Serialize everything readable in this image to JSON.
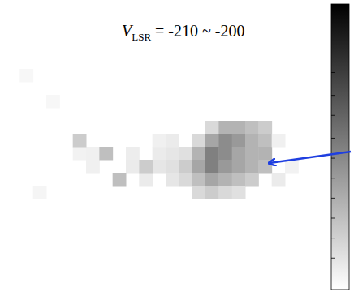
{
  "chart_data": {
    "type": "heatmap",
    "annotation": {
      "symbol": "V",
      "subscript": "LSR",
      "text": "= -210 ~ -200"
    },
    "xlim": [
      0,
      24
    ],
    "ylim": [
      0,
      22
    ],
    "xticks": [
      0,
      1,
      2,
      3,
      4,
      5,
      6,
      7,
      8,
      9,
      10,
      11,
      12,
      13,
      14,
      15,
      16,
      17,
      18,
      19,
      20,
      21,
      22,
      23,
      24
    ],
    "yticks": [
      0,
      2,
      4,
      6,
      8,
      10,
      12,
      14,
      16,
      18,
      20,
      22
    ],
    "tick_labels": false,
    "color": "gray",
    "cells": [
      [
        15,
        9,
        0.15
      ],
      [
        16,
        9,
        0.3
      ],
      [
        17,
        9,
        0.3
      ],
      [
        18,
        9,
        0.25
      ],
      [
        19,
        9,
        0.2
      ],
      [
        14,
        10,
        0.15
      ],
      [
        15,
        10,
        0.35
      ],
      [
        16,
        10,
        0.45
      ],
      [
        17,
        10,
        0.4
      ],
      [
        18,
        10,
        0.3
      ],
      [
        19,
        10,
        0.25
      ],
      [
        13,
        11,
        0.12
      ],
      [
        14,
        11,
        0.3
      ],
      [
        15,
        11,
        0.5
      ],
      [
        16,
        11,
        0.45
      ],
      [
        17,
        11,
        0.35
      ],
      [
        18,
        11,
        0.3
      ],
      [
        19,
        11,
        0.3
      ],
      [
        13,
        12,
        0.2
      ],
      [
        14,
        12,
        0.35
      ],
      [
        15,
        12,
        0.5
      ],
      [
        16,
        12,
        0.4
      ],
      [
        17,
        12,
        0.35
      ],
      [
        18,
        12,
        0.3
      ],
      [
        19,
        12,
        0.25
      ],
      [
        13,
        13,
        0.15
      ],
      [
        14,
        13,
        0.25
      ],
      [
        15,
        13,
        0.35
      ],
      [
        16,
        13,
        0.3
      ],
      [
        17,
        13,
        0.25
      ],
      [
        18,
        13,
        0.2
      ],
      [
        14,
        14,
        0.15
      ],
      [
        15,
        14,
        0.2
      ],
      [
        16,
        14,
        0.15
      ],
      [
        17,
        14,
        0.12
      ],
      [
        5,
        11,
        0.05
      ],
      [
        6,
        11,
        0.06
      ],
      [
        9,
        11,
        0.07
      ],
      [
        11,
        11,
        0.08
      ],
      [
        12,
        11,
        0.1
      ],
      [
        6,
        12,
        0.06
      ],
      [
        9,
        12,
        0.08
      ],
      [
        11,
        12,
        0.1
      ],
      [
        12,
        12,
        0.12
      ],
      [
        10,
        13,
        0.08
      ],
      [
        12,
        13,
        0.1
      ],
      [
        11,
        10,
        0.06
      ],
      [
        12,
        10,
        0.08
      ],
      [
        7,
        11,
        0.25
      ],
      [
        8,
        13,
        0.25
      ],
      [
        5,
        10,
        0.2
      ],
      [
        10,
        12,
        0.2
      ],
      [
        1,
        5,
        0.03
      ],
      [
        3,
        7,
        0.03
      ],
      [
        2,
        14,
        0.04
      ],
      [
        20,
        13,
        0.08
      ],
      [
        21,
        12,
        0.05
      ],
      [
        20,
        10,
        0.06
      ]
    ],
    "colorbar": {
      "range": [
        0,
        1
      ],
      "ticks": [
        0.11,
        0.18,
        0.25,
        0.32,
        0.39,
        0.46,
        0.53,
        0.61,
        0.68,
        0.76
      ]
    }
  }
}
